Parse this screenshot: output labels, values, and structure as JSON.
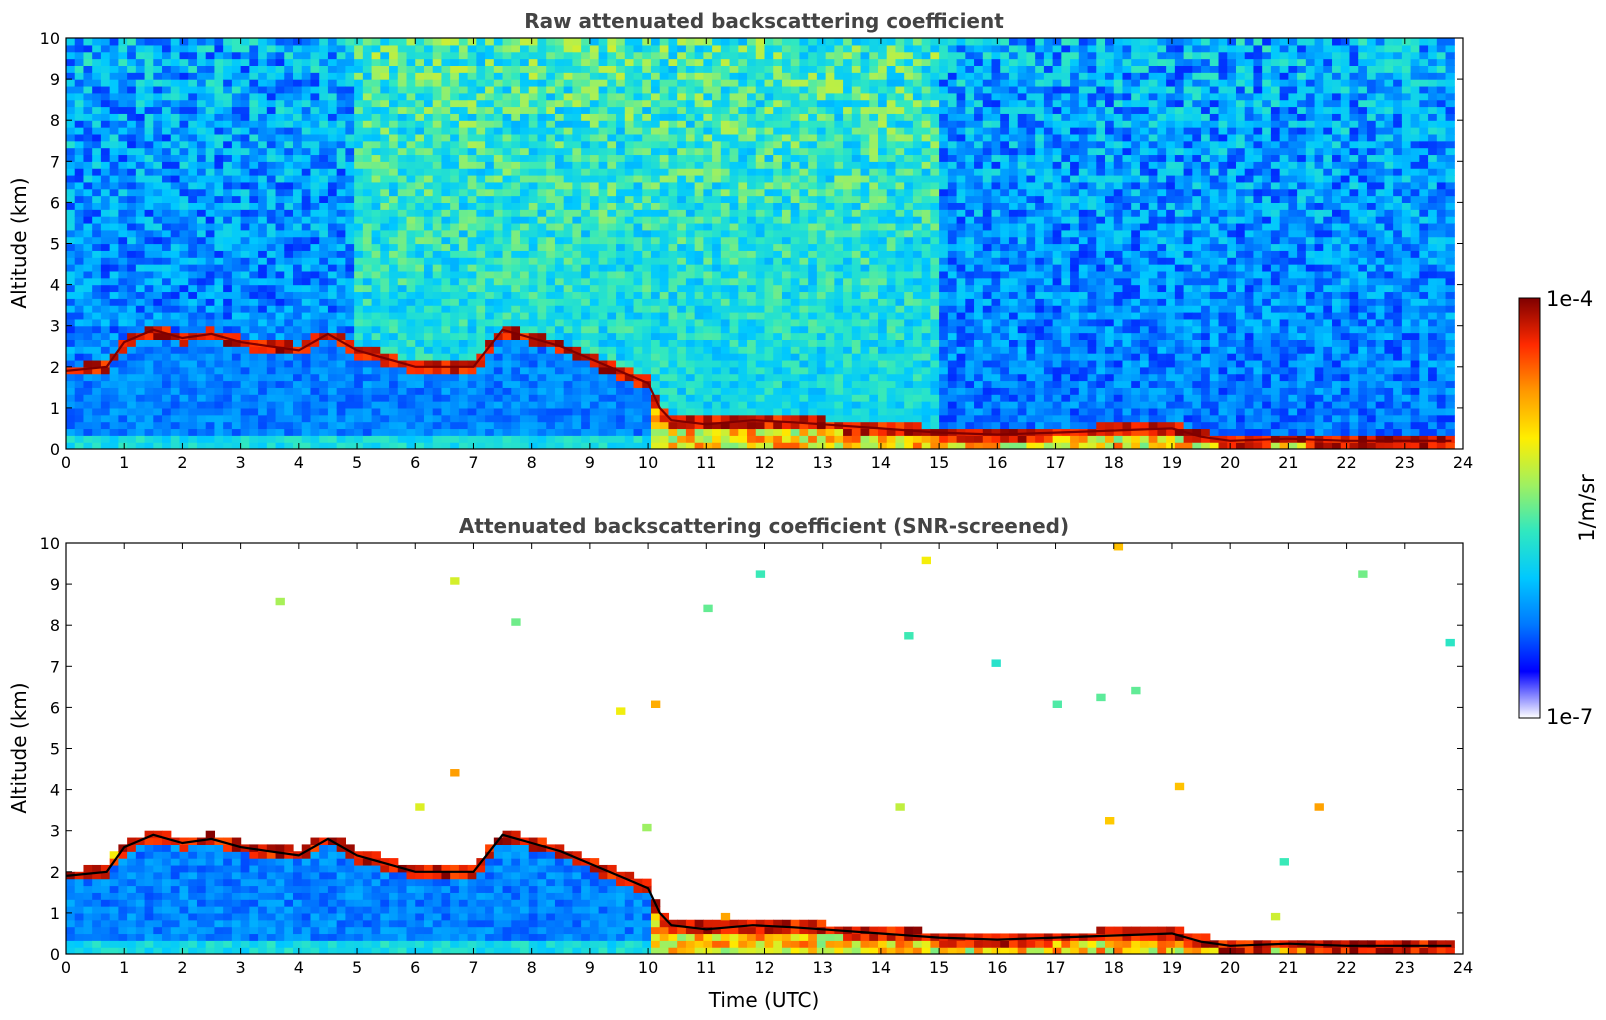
{
  "figure": {
    "xlabel": "Time (UTC)"
  },
  "colorbar": {
    "label": "1/m/sr",
    "max_label": "1e-4",
    "min_label": "1e-7",
    "vmin": 1e-07,
    "vmax": 0.0001,
    "scale": "log",
    "colormap": "jet-like (white → blue → cyan → yellow → red → dark red)",
    "stops": [
      "#ffffff",
      "#0000ff",
      "#0078ff",
      "#00c8ff",
      "#30e8c0",
      "#a0f060",
      "#ffee00",
      "#ff9900",
      "#ff2a00",
      "#7f0000"
    ]
  },
  "chart_data": [
    {
      "type": "heatmap",
      "title": "Raw attenuated backscattering coefficient",
      "xlabel": "",
      "ylabel": "Altitude (km)",
      "xlim": [
        0,
        24
      ],
      "ylim": [
        0,
        10
      ],
      "x_ticks": [
        0,
        1,
        2,
        3,
        4,
        5,
        6,
        7,
        8,
        9,
        10,
        11,
        12,
        13,
        14,
        15,
        16,
        17,
        18,
        19,
        20,
        21,
        22,
        23,
        24
      ],
      "y_ticks": [
        0,
        1,
        2,
        3,
        4,
        5,
        6,
        7,
        8,
        9,
        10
      ],
      "cloud_top_line": {
        "x": [
          0,
          0.7,
          1.0,
          1.5,
          2.0,
          2.5,
          3.0,
          3.5,
          4.0,
          4.5,
          5.0,
          5.5,
          6.0,
          6.5,
          7.0,
          7.5,
          8.0,
          8.5,
          9.0,
          9.5,
          10.0,
          10.2,
          10.4,
          11.0,
          11.8,
          12.5,
          13.0,
          14.0,
          15.0,
          16.0,
          17.0,
          18.0,
          19.0,
          19.5,
          20.0,
          21.0,
          22.0,
          23.0,
          23.8
        ],
        "y": [
          1.9,
          2.0,
          2.6,
          2.9,
          2.7,
          2.8,
          2.6,
          2.5,
          2.4,
          2.8,
          2.4,
          2.2,
          2.0,
          2.0,
          2.0,
          2.9,
          2.7,
          2.5,
          2.2,
          1.9,
          1.6,
          1.0,
          0.7,
          0.6,
          0.7,
          0.65,
          0.6,
          0.5,
          0.4,
          0.35,
          0.4,
          0.45,
          0.5,
          0.3,
          0.2,
          0.25,
          0.2,
          0.2,
          0.2
        ]
      }
    },
    {
      "type": "heatmap",
      "title": "Attenuated backscattering coefficient (SNR-screened)",
      "xlabel": "Time (UTC)",
      "ylabel": "Altitude (km)",
      "xlim": [
        0,
        24
      ],
      "ylim": [
        0,
        10
      ],
      "x_ticks": [
        0,
        1,
        2,
        3,
        4,
        5,
        6,
        7,
        8,
        9,
        10,
        11,
        12,
        13,
        14,
        15,
        16,
        17,
        18,
        19,
        20,
        21,
        22,
        23,
        24
      ],
      "y_ticks": [
        0,
        1,
        2,
        3,
        4,
        5,
        6,
        7,
        8,
        9,
        10
      ],
      "cloud_top_line": {
        "x": [
          0,
          0.7,
          1.0,
          1.5,
          2.0,
          2.5,
          3.0,
          3.5,
          4.0,
          4.5,
          5.0,
          5.5,
          6.0,
          6.5,
          7.0,
          7.5,
          8.0,
          8.5,
          9.0,
          9.5,
          10.0,
          10.2,
          10.4,
          11.0,
          11.8,
          12.5,
          13.0,
          14.0,
          15.0,
          16.0,
          17.0,
          18.0,
          19.0,
          19.5,
          20.0,
          21.0,
          22.0,
          23.0,
          23.8
        ],
        "y": [
          1.9,
          2.0,
          2.6,
          2.9,
          2.7,
          2.8,
          2.6,
          2.5,
          2.4,
          2.8,
          2.4,
          2.2,
          2.0,
          2.0,
          2.0,
          2.9,
          2.7,
          2.5,
          2.2,
          1.9,
          1.6,
          1.0,
          0.7,
          0.6,
          0.7,
          0.65,
          0.6,
          0.5,
          0.4,
          0.35,
          0.4,
          0.45,
          0.5,
          0.3,
          0.2,
          0.25,
          0.2,
          0.2,
          0.2
        ]
      }
    }
  ]
}
